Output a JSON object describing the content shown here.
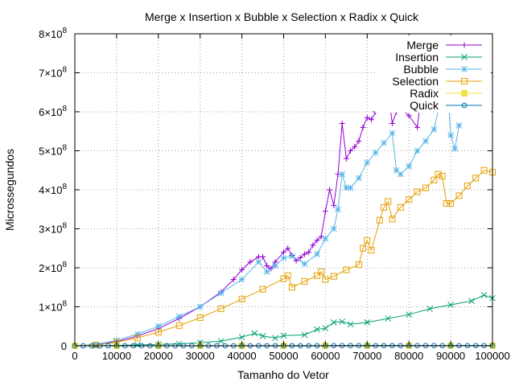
{
  "chart_data": {
    "type": "line",
    "title": "Merge x Insertion x Bubble x Selection x Radix x Quick",
    "xlabel": "Tamanho do Vetor",
    "ylabel": "Microssegundos",
    "xlim": [
      0,
      100000
    ],
    "ylim": [
      0,
      800000000
    ],
    "x_ticks": [
      "0",
      "10000",
      "20000",
      "30000",
      "40000",
      "50000",
      "60000",
      "70000",
      "80000",
      "90000",
      "100000"
    ],
    "y_ticks": [
      {
        "value": 0,
        "mantissa": "0",
        "exp": ""
      },
      {
        "value": 100000000,
        "mantissa": "1×10",
        "exp": "8"
      },
      {
        "value": 200000000,
        "mantissa": "2×10",
        "exp": "8"
      },
      {
        "value": 300000000,
        "mantissa": "3×10",
        "exp": "8"
      },
      {
        "value": 400000000,
        "mantissa": "4×10",
        "exp": "8"
      },
      {
        "value": 500000000,
        "mantissa": "5×10",
        "exp": "8"
      },
      {
        "value": 600000000,
        "mantissa": "6×10",
        "exp": "8"
      },
      {
        "value": 700000000,
        "mantissa": "7×10",
        "exp": "8"
      },
      {
        "value": 800000000,
        "mantissa": "8×10",
        "exp": "8"
      }
    ],
    "grid": true,
    "legend_position": "top-right",
    "series": [
      {
        "name": "Merge",
        "color": "#9400d3",
        "marker": "plus",
        "x": [
          0,
          5000,
          10000,
          15000,
          20000,
          25000,
          30000,
          35000,
          38000,
          40000,
          42000,
          44000,
          45000,
          46000,
          47000,
          48000,
          50000,
          51000,
          52000,
          53000,
          54000,
          55000,
          56000,
          57000,
          58000,
          59000,
          60000,
          61000,
          62000,
          63000,
          64000,
          65000,
          66000,
          67000,
          68000,
          69000,
          70000,
          71000,
          72000,
          73000,
          74000,
          75000,
          76000,
          77000,
          78000,
          80000,
          82000,
          83000,
          84000,
          85000,
          86000,
          87000,
          88000
        ],
        "y": [
          0,
          2000000,
          11000000,
          25000000,
          44000000,
          70000000,
          100000000,
          138000000,
          170000000,
          195000000,
          215000000,
          228000000,
          228000000,
          205000000,
          198000000,
          215000000,
          240000000,
          250000000,
          232000000,
          218000000,
          226000000,
          235000000,
          240000000,
          258000000,
          270000000,
          280000000,
          345000000,
          400000000,
          360000000,
          440000000,
          570000000,
          480000000,
          500000000,
          510000000,
          525000000,
          560000000,
          585000000,
          580000000,
          600000000,
          625000000,
          635000000,
          660000000,
          570000000,
          600000000,
          610000000,
          590000000,
          560000000,
          650000000,
          700000000,
          775000000,
          705000000,
          760000000,
          705000000
        ]
      },
      {
        "name": "Insertion",
        "color": "#009e73",
        "marker": "x",
        "x": [
          0,
          5000,
          10000,
          15000,
          20000,
          25000,
          30000,
          35000,
          40000,
          43000,
          45000,
          48000,
          50000,
          55000,
          58000,
          60000,
          62000,
          64000,
          66000,
          70000,
          75000,
          80000,
          85000,
          90000,
          95000,
          98000,
          100000
        ],
        "y": [
          0,
          200000,
          800000,
          2000000,
          3500000,
          5000000,
          8000000,
          12000000,
          22000000,
          32000000,
          25000000,
          20000000,
          26000000,
          28000000,
          42000000,
          45000000,
          60000000,
          62000000,
          55000000,
          60000000,
          70000000,
          80000000,
          95000000,
          105000000,
          115000000,
          130000000,
          122000000
        ]
      },
      {
        "name": "Bubble",
        "color": "#56b4e9",
        "marker": "star",
        "x": [
          0,
          5000,
          10000,
          15000,
          20000,
          25000,
          30000,
          35000,
          40000,
          44000,
          46000,
          48000,
          50000,
          52000,
          55000,
          58000,
          60000,
          62000,
          63000,
          64000,
          65000,
          66000,
          68000,
          70000,
          72000,
          74000,
          76000,
          77000,
          78000,
          80000,
          82000,
          84000,
          86000,
          88000,
          89000,
          90000,
          91000,
          92000
        ],
        "y": [
          0,
          3000000,
          14000000,
          30000000,
          50000000,
          75000000,
          100000000,
          135000000,
          170000000,
          215000000,
          190000000,
          205000000,
          225000000,
          230000000,
          210000000,
          235000000,
          275000000,
          300000000,
          350000000,
          440000000,
          405000000,
          405000000,
          430000000,
          470000000,
          495000000,
          520000000,
          545000000,
          450000000,
          440000000,
          460000000,
          500000000,
          525000000,
          555000000,
          650000000,
          705000000,
          540000000,
          505000000,
          565000000
        ]
      },
      {
        "name": "Selection",
        "color": "#e69f00",
        "marker": "square",
        "x": [
          0,
          5000,
          10000,
          15000,
          20000,
          25000,
          30000,
          35000,
          40000,
          45000,
          50000,
          51000,
          52000,
          55000,
          58000,
          59000,
          60000,
          62000,
          65000,
          68000,
          69000,
          70000,
          71000,
          73000,
          74000,
          75000,
          76000,
          78000,
          80000,
          82000,
          84000,
          86000,
          87000,
          88000,
          89000,
          90000,
          92000,
          94000,
          96000,
          98000,
          100000
        ],
        "y": [
          0,
          2000000,
          9000000,
          20000000,
          35000000,
          52000000,
          72000000,
          95000000,
          120000000,
          145000000,
          172000000,
          180000000,
          150000000,
          165000000,
          180000000,
          190000000,
          170000000,
          178000000,
          195000000,
          208000000,
          250000000,
          270000000,
          245000000,
          322000000,
          355000000,
          370000000,
          325000000,
          355000000,
          375000000,
          395000000,
          405000000,
          425000000,
          440000000,
          435000000,
          365000000,
          365000000,
          385000000,
          410000000,
          430000000,
          450000000,
          445000000
        ]
      },
      {
        "name": "Radix",
        "color": "#f0e442",
        "marker": "filled-square",
        "x": [
          0,
          10000,
          20000,
          30000,
          40000,
          50000,
          60000,
          70000,
          80000,
          90000,
          100000
        ],
        "y": [
          0,
          50000,
          100000,
          150000,
          200000,
          250000,
          300000,
          350000,
          400000,
          450000,
          500000
        ]
      },
      {
        "name": "Quick",
        "color": "#0072b2",
        "marker": "circle",
        "x": [
          0,
          2000,
          4000,
          6000,
          8000,
          10000,
          12000,
          14000,
          16000,
          18000,
          20000,
          22000,
          24000,
          26000,
          28000,
          30000,
          32000,
          34000,
          36000,
          38000,
          40000,
          42000,
          44000,
          46000,
          48000,
          50000,
          52000,
          54000,
          56000,
          58000,
          60000,
          62000,
          64000,
          66000,
          68000,
          70000,
          72000,
          74000,
          76000,
          78000,
          80000,
          82000,
          84000,
          86000,
          88000,
          90000,
          92000,
          94000,
          96000,
          98000,
          100000
        ],
        "y": [
          0,
          10000,
          20000,
          30000,
          40000,
          50000,
          60000,
          70000,
          80000,
          90000,
          100000,
          110000,
          120000,
          130000,
          140000,
          150000,
          160000,
          170000,
          180000,
          190000,
          200000,
          210000,
          220000,
          230000,
          240000,
          250000,
          260000,
          270000,
          280000,
          290000,
          300000,
          310000,
          320000,
          330000,
          340000,
          350000,
          360000,
          370000,
          380000,
          390000,
          400000,
          410000,
          420000,
          430000,
          440000,
          450000,
          460000,
          470000,
          480000,
          490000,
          500000
        ]
      }
    ]
  }
}
